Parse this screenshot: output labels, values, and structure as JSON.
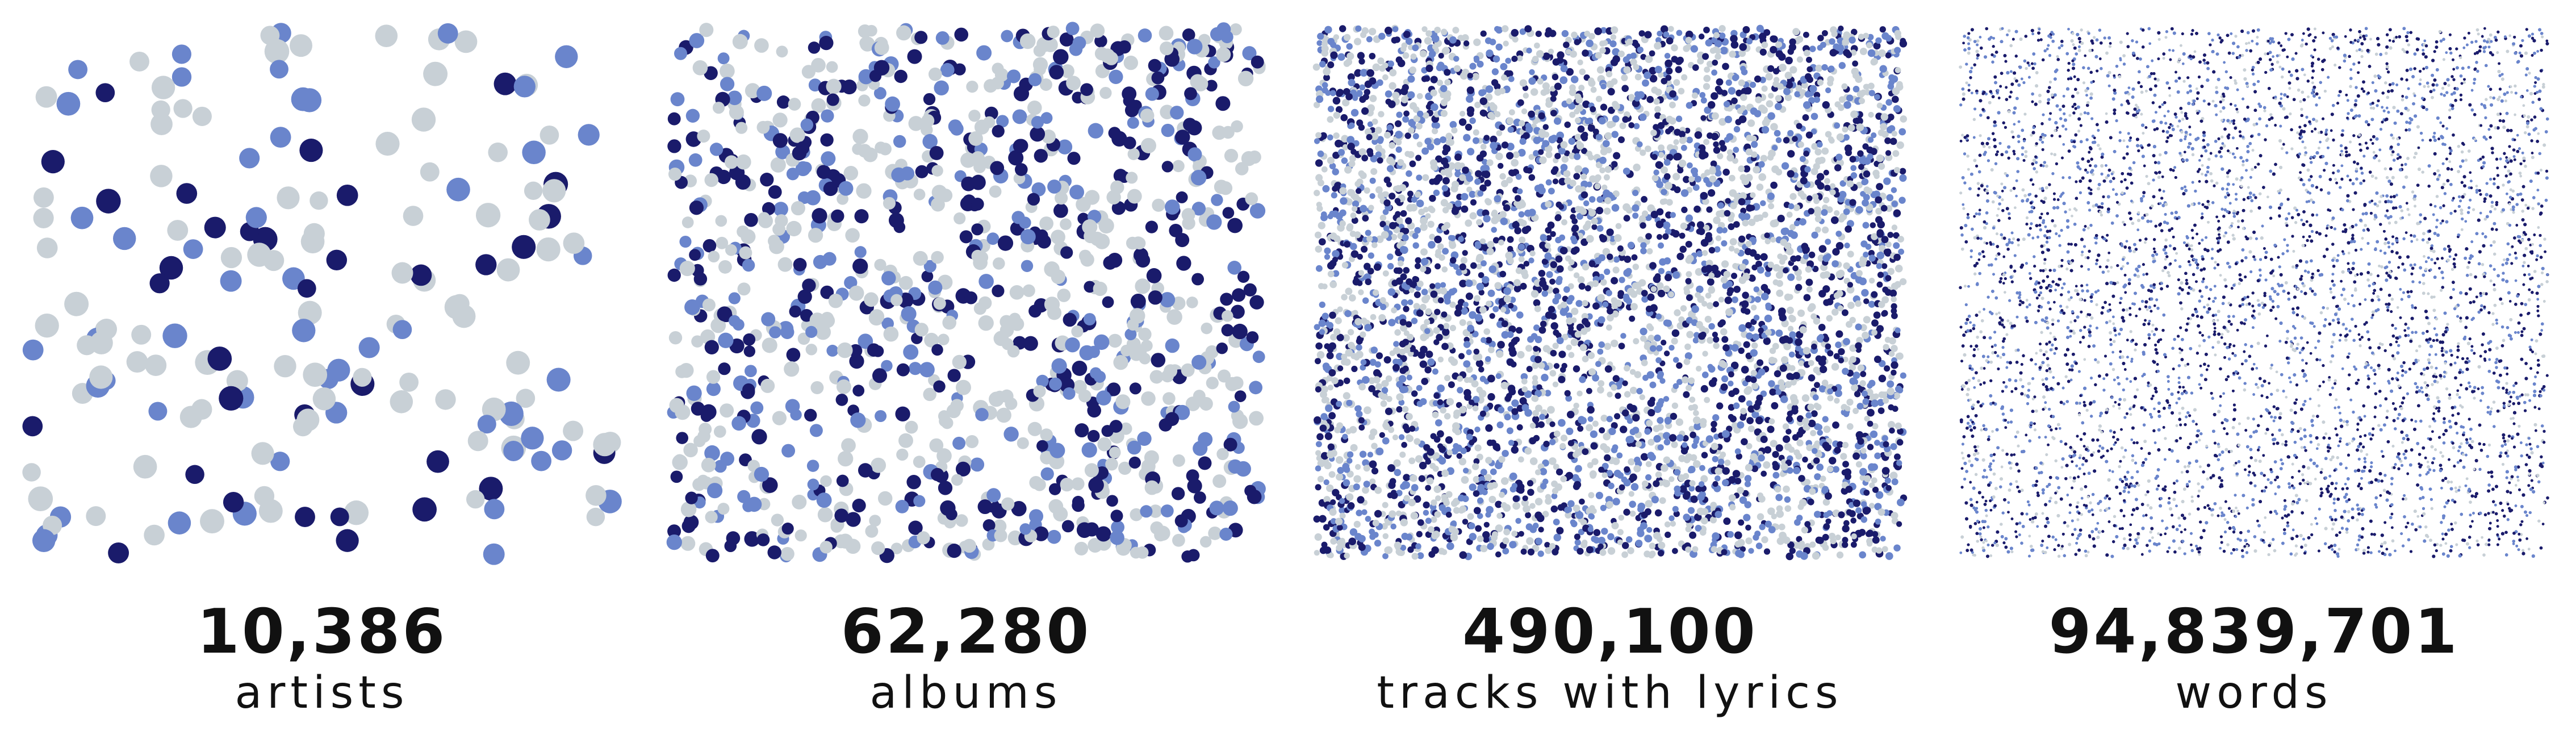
{
  "palette": {
    "dark": "#1a1b6b",
    "mid": "#6a85cc",
    "light": "#c8d0d6"
  },
  "chart_data": [
    {
      "type": "scatter",
      "value": "10,386",
      "label": "artists",
      "dots_approx": 180
    },
    {
      "type": "scatter",
      "value": "62,280",
      "label": "albums",
      "dots_approx": 1100
    },
    {
      "type": "scatter",
      "value": "490,100",
      "label": "tracks with lyrics",
      "dots_approx": 5000
    },
    {
      "type": "scatter",
      "value": "94,839,701",
      "label": "words",
      "dots_approx": 20000
    }
  ]
}
